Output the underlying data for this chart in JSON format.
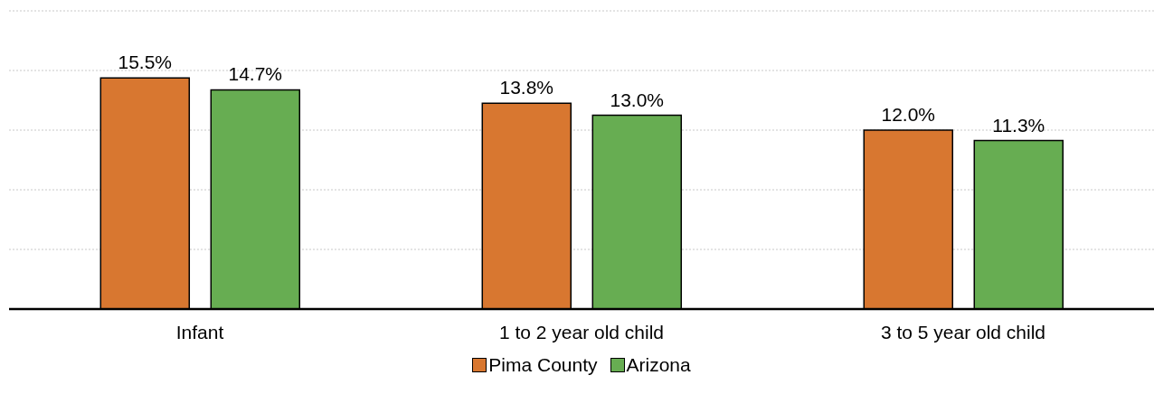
{
  "chart_data": {
    "type": "bar",
    "categories": [
      "Infant",
      "1 to 2 year old child",
      "3 to 5 year old child"
    ],
    "series": [
      {
        "name": "Pima County",
        "color": "#d87730",
        "values": [
          15.5,
          13.8,
          12.0
        ],
        "value_labels": [
          "15.5%",
          "13.8%",
          "12.0%"
        ]
      },
      {
        "name": "Arizona",
        "color": "#67ad52",
        "values": [
          14.7,
          13.0,
          11.3
        ],
        "value_labels": [
          "14.7%",
          "13.0%",
          "11.3%"
        ]
      }
    ],
    "ylim": [
      0,
      20
    ],
    "tick_labels": "x",
    "grid": "y",
    "legend": "bottom"
  }
}
